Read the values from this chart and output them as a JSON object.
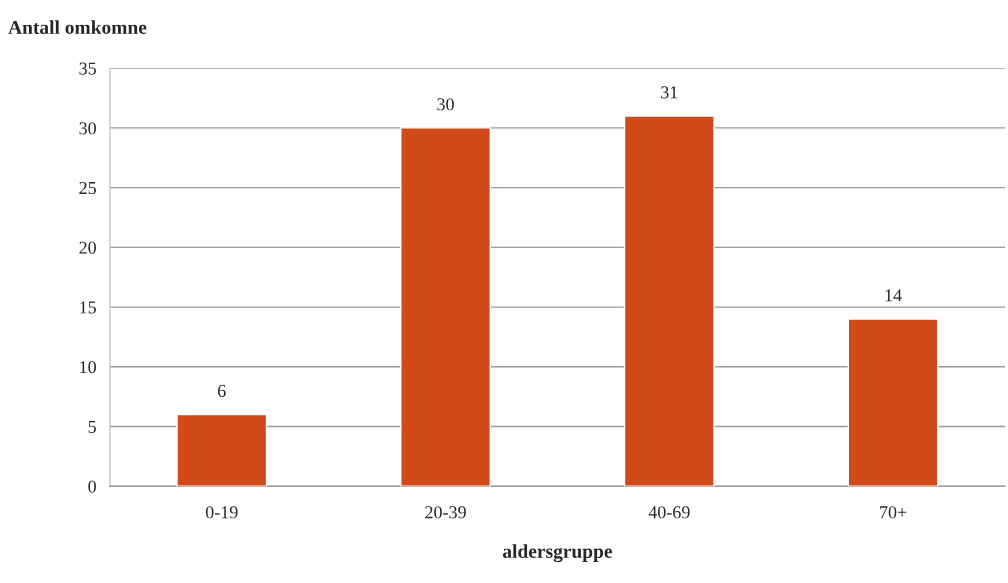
{
  "chart_data": {
    "type": "bar",
    "ylabel": "Antall omkomne",
    "xlabel": "aldersgruppe",
    "categories": [
      "0-19",
      "20-39",
      "40-69",
      "70+"
    ],
    "values": [
      6,
      30,
      31,
      14
    ],
    "color": "#d04a1a",
    "ylim": [
      0,
      35
    ],
    "yticks": [
      0,
      5,
      10,
      15,
      20,
      25,
      30,
      35
    ],
    "grid": "y",
    "data_labels": true
  }
}
